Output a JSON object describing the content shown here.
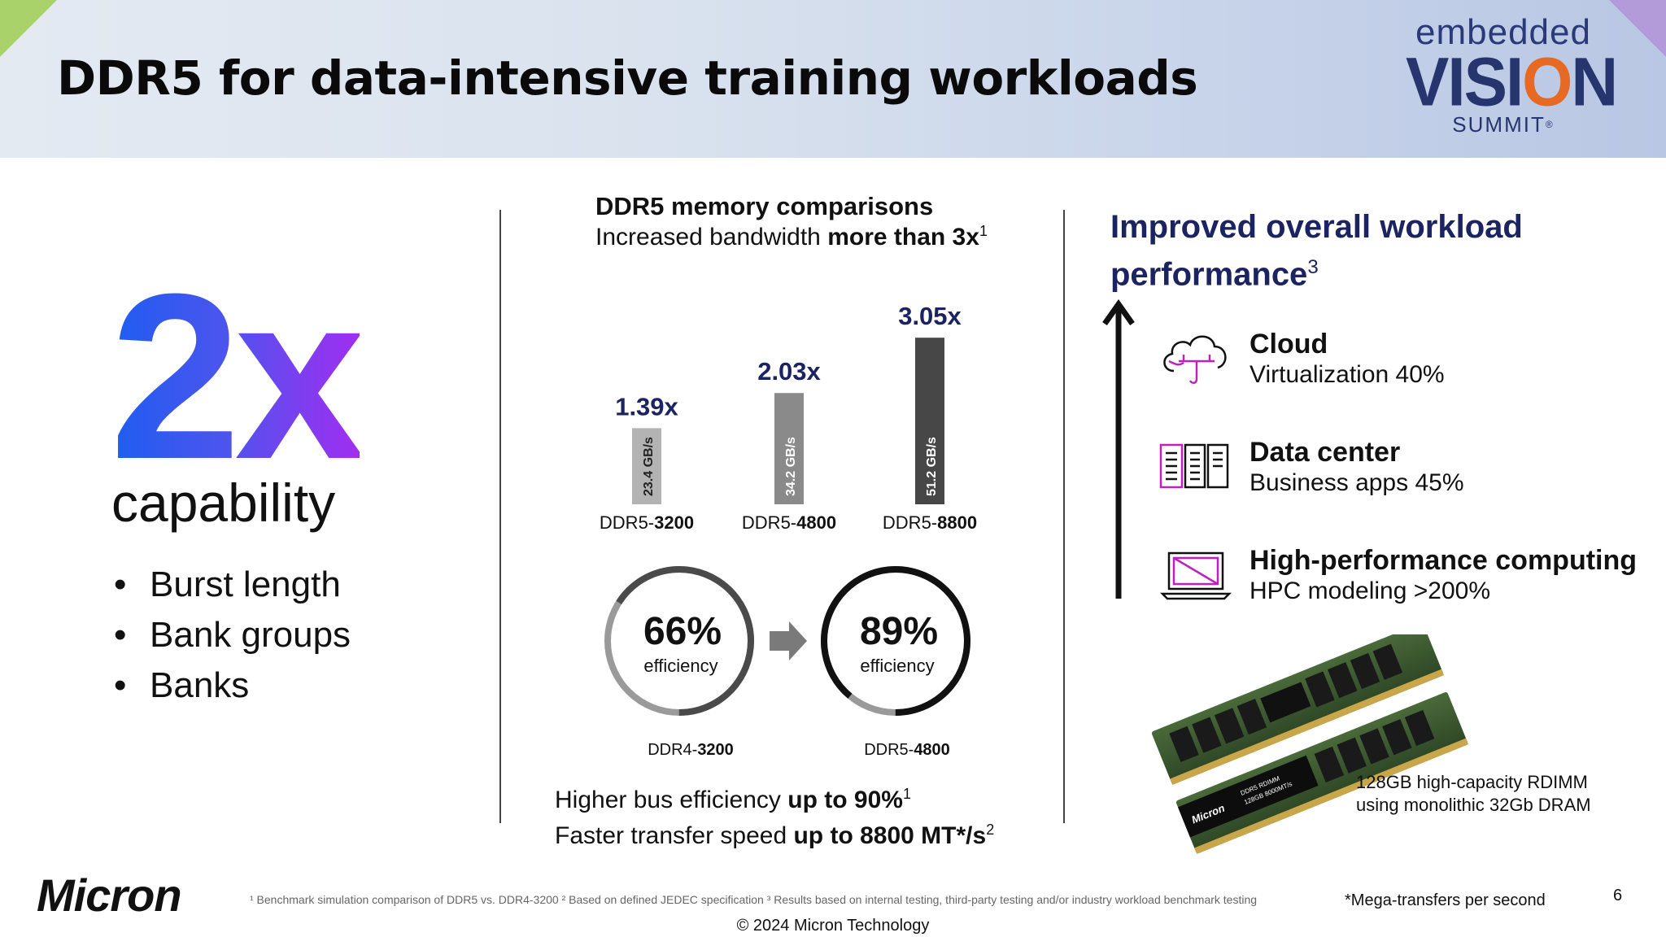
{
  "header": {
    "title": "DDR5 for data-intensive training workloads",
    "logo_line1": "embedded",
    "logo_line2a": "VISI",
    "logo_line2b": "O",
    "logo_line2c": "N",
    "logo_line3": "SUMMIT",
    "logo_mark": "®"
  },
  "left": {
    "big_text": "2x",
    "capability": "capability",
    "bullets": [
      "Burst length",
      "Bank groups",
      "Banks"
    ]
  },
  "middle": {
    "title": "DDR5 memory comparisons",
    "subtitle_prefix": "Increased bandwidth ",
    "subtitle_bold": "more than 3x",
    "subtitle_sup": "1",
    "efficiency": [
      {
        "value": "66%",
        "label": "efficiency",
        "name_prefix": "DDR4-",
        "name_bold": "3200",
        "fraction": 0.66
      },
      {
        "value": "89%",
        "label": "efficiency",
        "name_prefix": "DDR5-",
        "name_bold": "4800",
        "fraction": 0.89
      }
    ],
    "foot1_prefix": "Higher bus efficiency ",
    "foot1_bold": "up to 90%",
    "foot1_sup": "1",
    "foot2_prefix": "Faster transfer speed ",
    "foot2_bold": "up to 8800 MT*/s",
    "foot2_sup": "2"
  },
  "chart_data": {
    "type": "bar",
    "categories": [
      "DDR5-3200",
      "DDR5-4800",
      "DDR5-8800"
    ],
    "category_prefix": [
      "DDR5-",
      "DDR5-",
      "DDR5-"
    ],
    "category_bold": [
      "3200",
      "4800",
      "8800"
    ],
    "values": [
      23.4,
      34.2,
      51.2
    ],
    "value_labels": [
      "23.4 GB/s",
      "34.2 GB/s",
      "51.2 GB/s"
    ],
    "multipliers": [
      "1.39x",
      "2.03x",
      "3.05x"
    ],
    "colors": [
      "#b3b3b3",
      "#8a8a8a",
      "#474747"
    ],
    "value_label_colors": [
      "#222222",
      "#ffffff",
      "#ffffff"
    ],
    "ylim": [
      0,
      60
    ]
  },
  "right": {
    "title_line1": "Improved overall workload",
    "title_line2": "performance",
    "title_sup": "3",
    "items": [
      {
        "icon": "cloud-icon",
        "title": "Cloud",
        "detail": "Virtualization 40%"
      },
      {
        "icon": "server-rack-icon",
        "title": "Data center",
        "detail": "Business apps 45%"
      },
      {
        "icon": "laptop-icon",
        "title": "High-performance computing",
        "detail": "HPC modeling >200%"
      }
    ],
    "ram_caption_line1": "128GB high-capacity RDIMM",
    "ram_caption_line2": "using monolithic 32Gb DRAM",
    "module_text_brand": "Micron",
    "module_text_top": "DDR5 RDIMM",
    "module_text_bottom": "128GB 8000MT/s"
  },
  "footer": {
    "brand": "Micron",
    "footnote": "¹ Benchmark simulation comparison of DDR5 vs. DDR4-3200 ² Based on defined JEDEC specification ³ Results based on internal testing, third-party testing and/or industry workload benchmark testing",
    "mega": "*Mega-transfers per second",
    "page": "6",
    "copyright": "© 2024 Micron Technology"
  },
  "colors": {
    "accent_navy": "#1b2361",
    "gradient_blue": "#1f5df0",
    "gradient_purple": "#a22ef0",
    "icon_magenta": "#c21fbf",
    "logo_orange": "#e66a23"
  }
}
